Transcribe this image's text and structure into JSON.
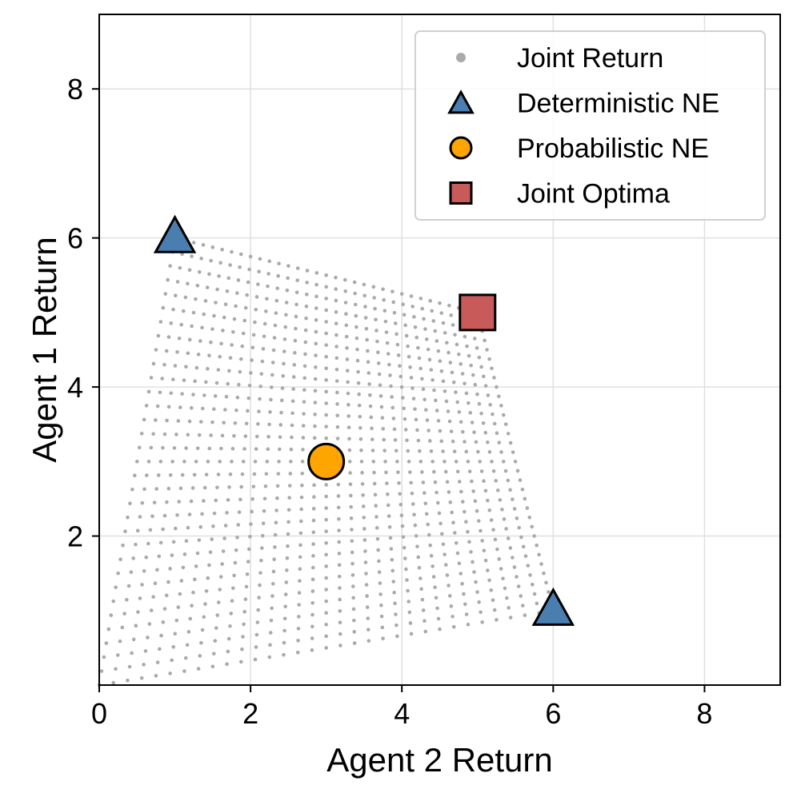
{
  "chart_data": {
    "type": "scatter",
    "xlabel": "Agent 2 Return",
    "ylabel": "Agent 1 Return",
    "xlim": [
      0,
      9
    ],
    "ylim": [
      0,
      9
    ],
    "xticks": [
      0,
      2,
      4,
      6,
      8
    ],
    "yticks": [
      2,
      4,
      6,
      8
    ],
    "grid": true,
    "legend_position": "top-right",
    "joint_return_region": {
      "description_corners_order": [
        "both-first-action",
        "agent1-first-agent2-second",
        "agent1-second-agent2-first",
        "both-second-action"
      ],
      "corners": [
        {
          "x": 1,
          "y": 6
        },
        {
          "x": 5,
          "y": 5
        },
        {
          "x": 0,
          "y": 0
        },
        {
          "x": 6,
          "y": 1
        }
      ],
      "grid_steps": 32,
      "color": "#aaaaaa"
    },
    "series": [
      {
        "name": "Joint Return",
        "marker": "dot",
        "color": "#aaaaaa"
      },
      {
        "name": "Deterministic NE",
        "marker": "triangle",
        "color": "#4a7eb0",
        "points": [
          {
            "x": 1,
            "y": 6
          },
          {
            "x": 6,
            "y": 1
          }
        ]
      },
      {
        "name": "Probabilistic NE",
        "marker": "circle",
        "color": "#ffa500",
        "points": [
          {
            "x": 3,
            "y": 3
          }
        ]
      },
      {
        "name": "Joint Optima",
        "marker": "square",
        "color": "#c85a5a",
        "points": [
          {
            "x": 5,
            "y": 5
          }
        ]
      }
    ]
  }
}
